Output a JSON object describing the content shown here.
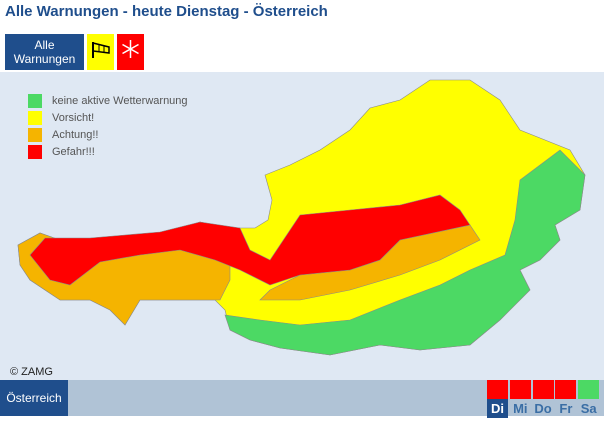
{
  "header": {
    "title": "Alle Warnungen - heute Dienstag - Österreich"
  },
  "tabs": {
    "all": "Alle Warnungen",
    "wind_color": "#ffff00",
    "snow_color": "#ff0000"
  },
  "legend": [
    {
      "label": "keine aktive Wetterwarnung",
      "color": "#4cd964"
    },
    {
      "label": "Vorsicht!",
      "color": "#ffff00"
    },
    {
      "label": "Achtung!!",
      "color": "#f5b400"
    },
    {
      "label": "Gefahr!!!",
      "color": "#ff0000"
    }
  ],
  "copyright": "© ZAMG",
  "region": "Österreich",
  "days": [
    {
      "label": "Di",
      "color": "#ff0000"
    },
    {
      "label": "Mi",
      "color": "#ff0000"
    },
    {
      "label": "Do",
      "color": "#ff0000"
    },
    {
      "label": "Fr",
      "color": "#ff0000"
    },
    {
      "label": "Sa",
      "color": "#4cd964"
    }
  ]
}
